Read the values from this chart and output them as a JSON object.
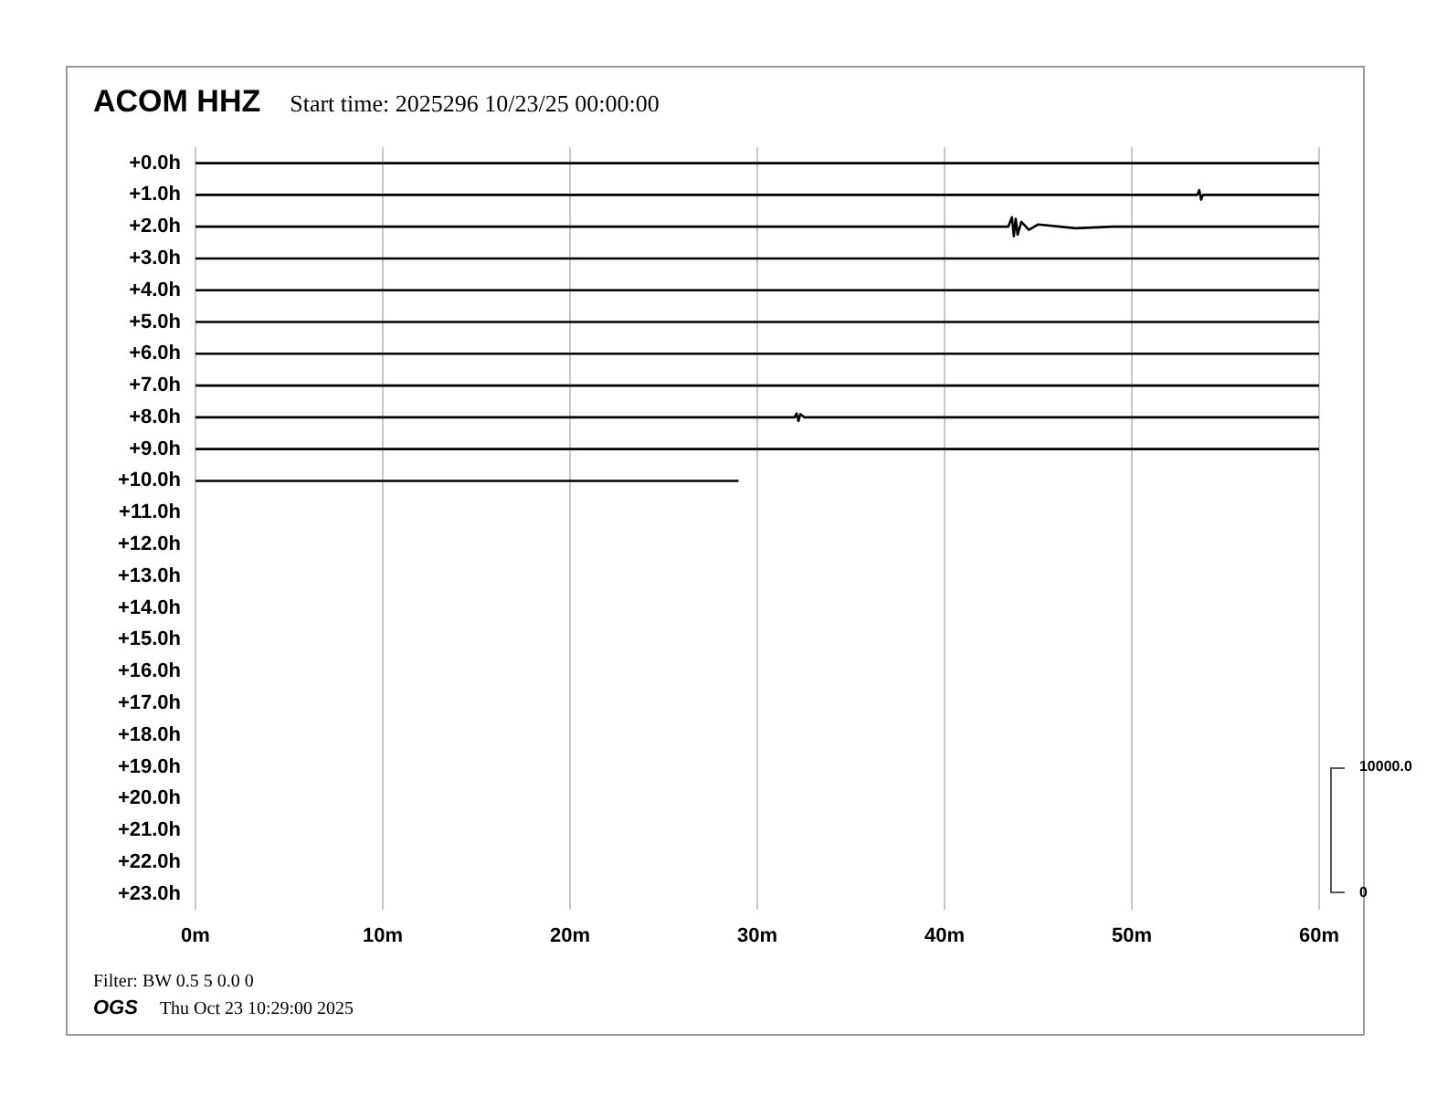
{
  "chart_data": {
    "type": "line",
    "title": "ACOM HHZ",
    "subtitle": "Start time: 2025296 10/23/25 00:00:00",
    "annotations": [
      "Filter: BW 0.5 5 0.0 0",
      "OGS",
      "Thu Oct 23 10:29:00 2025",
      "10000.0",
      "0"
    ],
    "xlim": [
      0,
      60
    ],
    "xticks": [
      {
        "value": 0,
        "label": "0m"
      },
      {
        "value": 10,
        "label": "10m"
      },
      {
        "value": 20,
        "label": "20m"
      },
      {
        "value": 30,
        "label": "30m"
      },
      {
        "value": 40,
        "label": "40m"
      },
      {
        "value": 50,
        "label": "50m"
      },
      {
        "value": 60,
        "label": "60m"
      }
    ],
    "ylim": [
      23.5,
      -0.5
    ],
    "yticks": [
      {
        "value": 0,
        "label": "+0.0h"
      },
      {
        "value": 1,
        "label": "+1.0h"
      },
      {
        "value": 2,
        "label": "+2.0h"
      },
      {
        "value": 3,
        "label": "+3.0h"
      },
      {
        "value": 4,
        "label": "+4.0h"
      },
      {
        "value": 5,
        "label": "+5.0h"
      },
      {
        "value": 6,
        "label": "+6.0h"
      },
      {
        "value": 7,
        "label": "+7.0h"
      },
      {
        "value": 8,
        "label": "+8.0h"
      },
      {
        "value": 9,
        "label": "+9.0h"
      },
      {
        "value": 10,
        "label": "+10.0h"
      },
      {
        "value": 11,
        "label": "+11.0h"
      },
      {
        "value": 12,
        "label": "+12.0h"
      },
      {
        "value": 13,
        "label": "+13.0h"
      },
      {
        "value": 14,
        "label": "+14.0h"
      },
      {
        "value": 15,
        "label": "+15.0h"
      },
      {
        "value": 16,
        "label": "+16.0h"
      },
      {
        "value": 17,
        "label": "+17.0h"
      },
      {
        "value": 18,
        "label": "+18.0h"
      },
      {
        "value": 19,
        "label": "+19.0h"
      },
      {
        "value": 20,
        "label": "+20.0h"
      },
      {
        "value": 21,
        "label": "+21.0h"
      },
      {
        "value": 22,
        "label": "+22.0h"
      },
      {
        "value": 23,
        "label": "+23.0h"
      }
    ],
    "grid": "x",
    "series": [
      {
        "color": "#000000",
        "x": [
          0,
          60
        ],
        "values": [
          0,
          0
        ]
      },
      {
        "color": "#000000",
        "x": [
          0,
          53.5,
          53.6,
          53.7,
          53.8,
          60
        ],
        "values": [
          1,
          1,
          0.85,
          1.15,
          1,
          1
        ]
      },
      {
        "color": "#000000",
        "x": [
          0,
          43.4,
          43.6,
          43.7,
          43.8,
          43.9,
          44.1,
          44.5,
          45,
          47,
          49,
          60
        ],
        "values": [
          2,
          2,
          1.7,
          2.3,
          1.75,
          2.25,
          1.85,
          2.1,
          1.93,
          2.05,
          2,
          2
        ]
      },
      {
        "color": "#000000",
        "x": [
          0,
          60
        ],
        "values": [
          3,
          3
        ]
      },
      {
        "color": "#000000",
        "x": [
          0,
          60
        ],
        "values": [
          4,
          4
        ]
      },
      {
        "color": "#000000",
        "x": [
          0,
          60
        ],
        "values": [
          5,
          5
        ]
      },
      {
        "color": "#000000",
        "x": [
          0,
          60
        ],
        "values": [
          6,
          6
        ]
      },
      {
        "color": "#000000",
        "x": [
          0,
          60
        ],
        "values": [
          7,
          7
        ]
      },
      {
        "color": "#000000",
        "x": [
          0,
          32.0,
          32.1,
          32.2,
          32.3,
          32.5,
          60
        ],
        "values": [
          8,
          8,
          7.88,
          8.12,
          7.9,
          8,
          8
        ]
      },
      {
        "color": "#000000",
        "x": [
          0,
          60
        ],
        "values": [
          9,
          9
        ]
      },
      {
        "color": "#000000",
        "x": [
          0,
          29
        ],
        "values": [
          10,
          10
        ]
      }
    ]
  }
}
